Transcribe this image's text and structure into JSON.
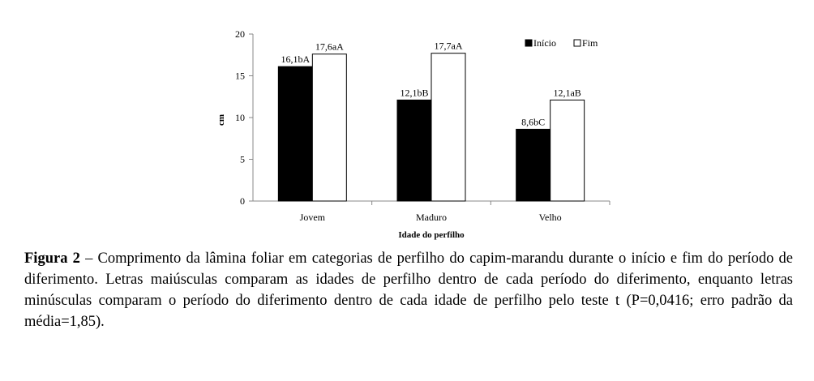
{
  "chart_data": {
    "type": "bar",
    "categories": [
      "Jovem",
      "Maduro",
      "Velho"
    ],
    "series": [
      {
        "name": "Início",
        "values": [
          16.1,
          12.1,
          8.6
        ],
        "labels": [
          "16,1bA",
          "12,1bB",
          "8,6bC"
        ],
        "color": "#000000"
      },
      {
        "name": "Fim",
        "values": [
          17.6,
          17.7,
          12.1
        ],
        "labels": [
          "17,6aA",
          "17,7aA",
          "12,1aB"
        ],
        "color": "#ffffff"
      }
    ],
    "title": "",
    "xlabel": "Idade do perfilho",
    "ylabel": "cm",
    "ylim": [
      0,
      20
    ],
    "yticks": [
      "0",
      "5",
      "10",
      "15",
      "20"
    ],
    "grid": false,
    "legend_position": "top-right"
  },
  "caption": {
    "label": "Figura 2",
    "text": " – Comprimento da lâmina foliar em categorias de perfilho do capim-marandu durante o início e fim do período de diferimento. Letras maiúsculas comparam as idades de perfilho dentro de cada período do diferimento, enquanto letras minúsculas comparam o período do diferimento dentro de cada idade de perfilho pelo teste t (P=0,0416; erro padrão da média=1,85)."
  }
}
